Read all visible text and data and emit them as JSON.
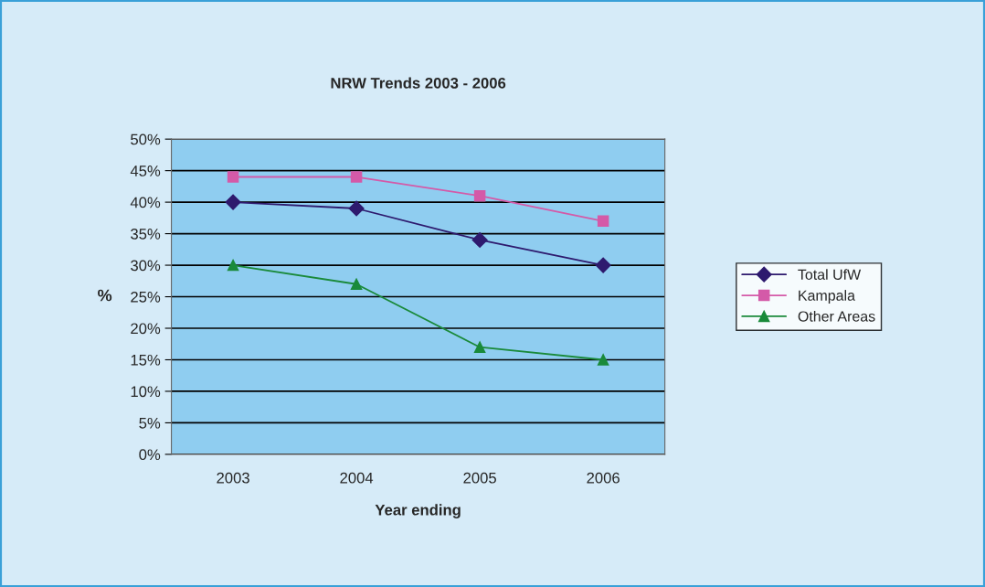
{
  "chart_data": {
    "type": "line",
    "title": "NRW Trends 2003 - 2006",
    "xlabel": "Year ending",
    "ylabel": "%",
    "categories": [
      "2003",
      "2004",
      "2005",
      "2006"
    ],
    "series": [
      {
        "name": "Total UfW",
        "color": "#2e1a6e",
        "marker": "diamond",
        "values": [
          40,
          39,
          34,
          30
        ]
      },
      {
        "name": "Kampala",
        "color": "#d45aa8",
        "marker": "square",
        "values": [
          44,
          44,
          41,
          37
        ]
      },
      {
        "name": "Other Areas",
        "color": "#1a8a3a",
        "marker": "triangle",
        "values": [
          30,
          27,
          17,
          15
        ]
      }
    ],
    "ylim": [
      0,
      50
    ],
    "yticks": [
      {
        "value": 0,
        "label": "0%"
      },
      {
        "value": 5,
        "label": "5%"
      },
      {
        "value": 10,
        "label": "10%"
      },
      {
        "value": 15,
        "label": "15%"
      },
      {
        "value": 20,
        "label": "20%"
      },
      {
        "value": 25,
        "label": "25%"
      },
      {
        "value": 30,
        "label": "30%"
      },
      {
        "value": 35,
        "label": "35%"
      },
      {
        "value": 40,
        "label": "40%"
      },
      {
        "value": 45,
        "label": "45%"
      },
      {
        "value": 50,
        "label": "50%"
      }
    ],
    "grid": "y",
    "legend": "right",
    "line_style": "solid"
  }
}
